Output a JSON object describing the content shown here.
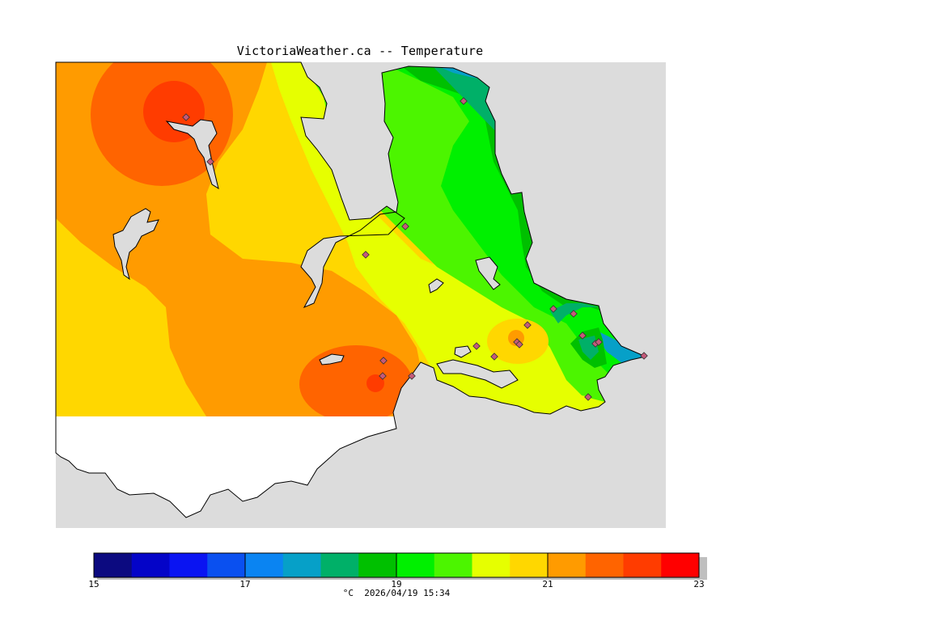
{
  "header": {
    "title": "VictoriaWeather.ca -- Temperature"
  },
  "legend": {
    "unit": "°C",
    "timestamp": "2026/04/19 15:34",
    "min": 15,
    "max": 23,
    "tick_labels": [
      "15",
      "17",
      "19",
      "21",
      "23"
    ],
    "colors": [
      "#0c0a80",
      "#0404c8",
      "#0a14f2",
      "#0a50f0",
      "#0a84f2",
      "#06a0c8",
      "#00b068",
      "#00c000",
      "#00f000",
      "#4cf500",
      "#e6ff00",
      "#ffd700",
      "#ff9b00",
      "#ff6400",
      "#ff3c00",
      "#ff0000"
    ]
  },
  "map": {
    "colors": {
      "ocean": "#dcdcdc",
      "unmapped_land": "#ffffff",
      "coast_line": "#000000",
      "station_fill": "#c45a7a"
    },
    "stations_count_visible": 20
  }
}
